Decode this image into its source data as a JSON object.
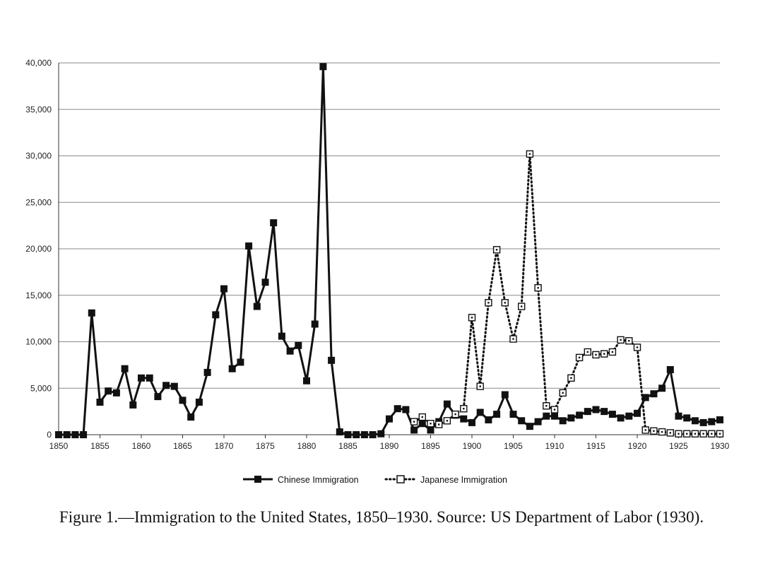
{
  "caption": "Figure 1.—Immigration to the United States, 1850–1930. Source: US Department of Labor (1930).",
  "chart_data": {
    "type": "line",
    "title": "",
    "xlabel": "",
    "ylabel": "",
    "xlim": [
      1850,
      1930
    ],
    "ylim": [
      0,
      40000
    ],
    "x_ticks": [
      1850,
      1855,
      1860,
      1865,
      1870,
      1875,
      1880,
      1885,
      1890,
      1895,
      1900,
      1905,
      1910,
      1915,
      1920,
      1925,
      1930
    ],
    "y_ticks": [
      0,
      5000,
      10000,
      15000,
      20000,
      25000,
      30000,
      35000,
      40000
    ],
    "y_tick_labels": [
      "0",
      "5,000",
      "10,000",
      "15,000",
      "20,000",
      "25,000",
      "30,000",
      "35,000",
      "40,000"
    ],
    "grid": "horizontal",
    "legend_position": "bottom",
    "series": [
      {
        "name": "Chinese Immigration",
        "style": "solid",
        "marker": "filled-square",
        "color": "#111111",
        "x": [
          1850,
          1851,
          1852,
          1853,
          1854,
          1855,
          1856,
          1857,
          1858,
          1859,
          1860,
          1861,
          1862,
          1863,
          1864,
          1865,
          1866,
          1867,
          1868,
          1869,
          1870,
          1871,
          1872,
          1873,
          1874,
          1875,
          1876,
          1877,
          1878,
          1879,
          1880,
          1881,
          1882,
          1883,
          1884,
          1885,
          1886,
          1887,
          1888,
          1889,
          1890,
          1891,
          1892,
          1893,
          1894,
          1895,
          1896,
          1897,
          1898,
          1899,
          1900,
          1901,
          1902,
          1903,
          1904,
          1905,
          1906,
          1907,
          1908,
          1909,
          1910,
          1911,
          1912,
          1913,
          1914,
          1915,
          1916,
          1917,
          1918,
          1919,
          1920,
          1921,
          1922,
          1923,
          1924,
          1925,
          1926,
          1927,
          1928,
          1929,
          1930
        ],
        "values": [
          0,
          0,
          0,
          0,
          13100,
          3500,
          4700,
          4500,
          7100,
          3200,
          6100,
          6100,
          4100,
          5300,
          5200,
          3700,
          1900,
          3500,
          6700,
          12900,
          15700,
          7100,
          7800,
          20300,
          13800,
          16400,
          22800,
          10600,
          9000,
          9600,
          5800,
          11900,
          39600,
          8000,
          300,
          0,
          0,
          0,
          0,
          100,
          1700,
          2800,
          2700,
          500,
          1200,
          500,
          1400,
          3300,
          2100,
          1700,
          1300,
          2400,
          1600,
          2200,
          4300,
          2200,
          1500,
          900,
          1400,
          2000,
          2000,
          1500,
          1800,
          2100,
          2500,
          2700,
          2500,
          2200,
          1800,
          2000,
          2300,
          4000,
          4400,
          5000,
          7000,
          2000,
          1800,
          1500,
          1300,
          1400,
          1600
        ]
      },
      {
        "name": "Japanese Immigration",
        "style": "dotted",
        "marker": "open-square",
        "color": "#111111",
        "x": [
          1893,
          1894,
          1895,
          1896,
          1897,
          1898,
          1899,
          1900,
          1901,
          1902,
          1903,
          1904,
          1905,
          1906,
          1907,
          1908,
          1909,
          1910,
          1911,
          1912,
          1913,
          1914,
          1915,
          1916,
          1917,
          1918,
          1919,
          1920,
          1921,
          1922,
          1923,
          1924,
          1925,
          1926,
          1927,
          1928,
          1929,
          1930
        ],
        "values": [
          1400,
          1900,
          1200,
          1100,
          1500,
          2200,
          2800,
          12600,
          5200,
          14200,
          19900,
          14200,
          10300,
          13800,
          30200,
          15800,
          3100,
          2700,
          4500,
          6100,
          8300,
          8900,
          8600,
          8700,
          8900,
          10200,
          10100,
          9400,
          500,
          400,
          300,
          200,
          100,
          100,
          100,
          100,
          100,
          100
        ]
      }
    ]
  }
}
